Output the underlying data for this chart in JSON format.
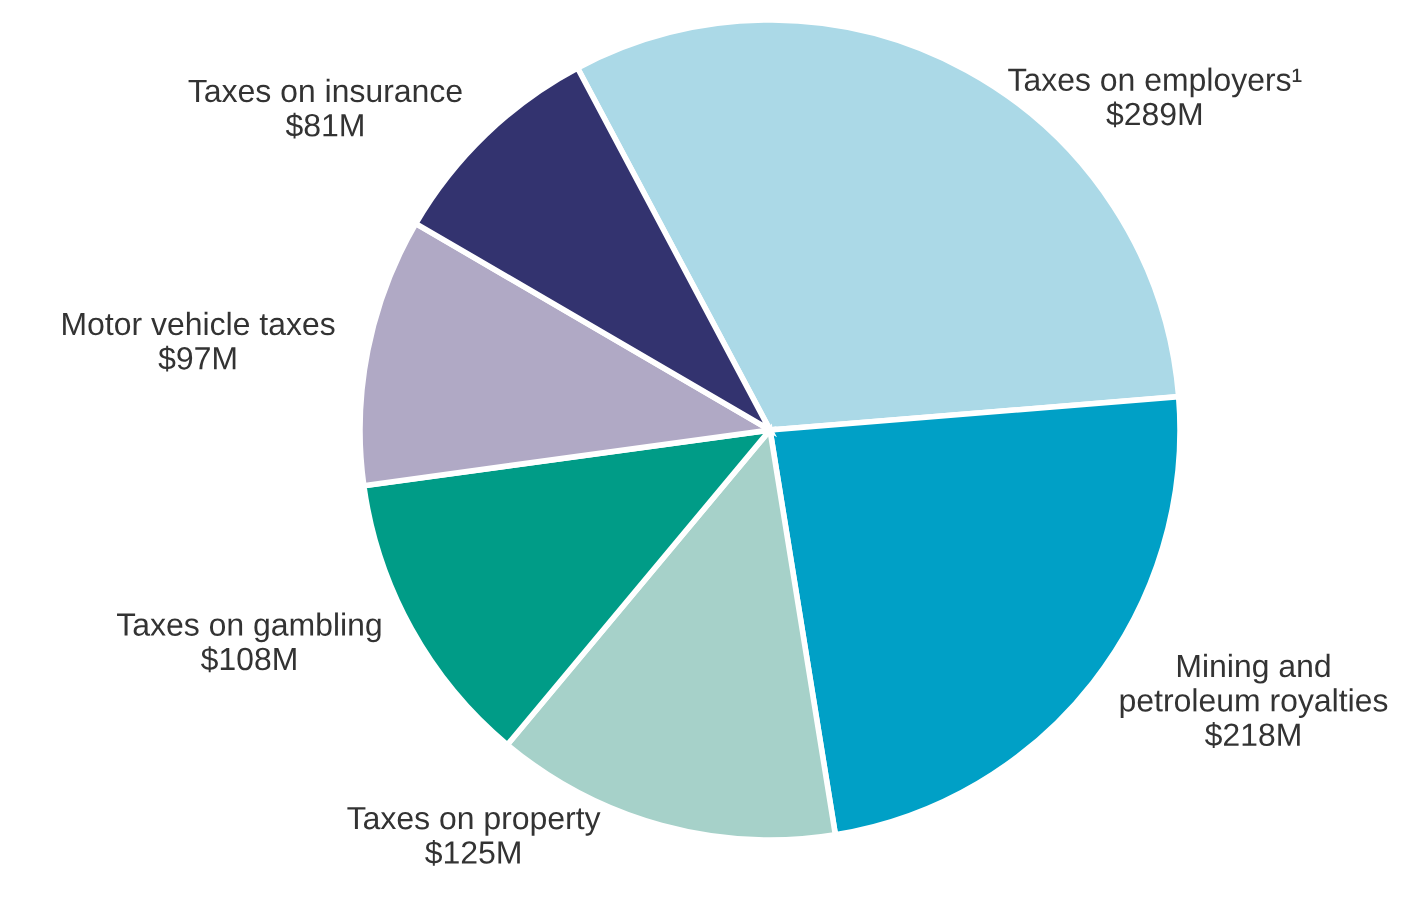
{
  "chart_data": {
    "type": "pie",
    "categories": [
      "Taxes on employers¹",
      "Mining and\npetroleum royalties",
      "Taxes on property",
      "Taxes on gambling",
      "Motor vehicle taxes",
      "Taxes on insurance"
    ],
    "values": [
      289,
      218,
      125,
      108,
      97,
      81
    ],
    "value_labels": [
      "$289M",
      "$218M",
      "$125M",
      "$108M",
      "$97M",
      "$81M"
    ],
    "colors": [
      "#abd9e7",
      "#00a0c6",
      "#a6d1c9",
      "#009c87",
      "#b0a9c5",
      "#33336f"
    ]
  }
}
